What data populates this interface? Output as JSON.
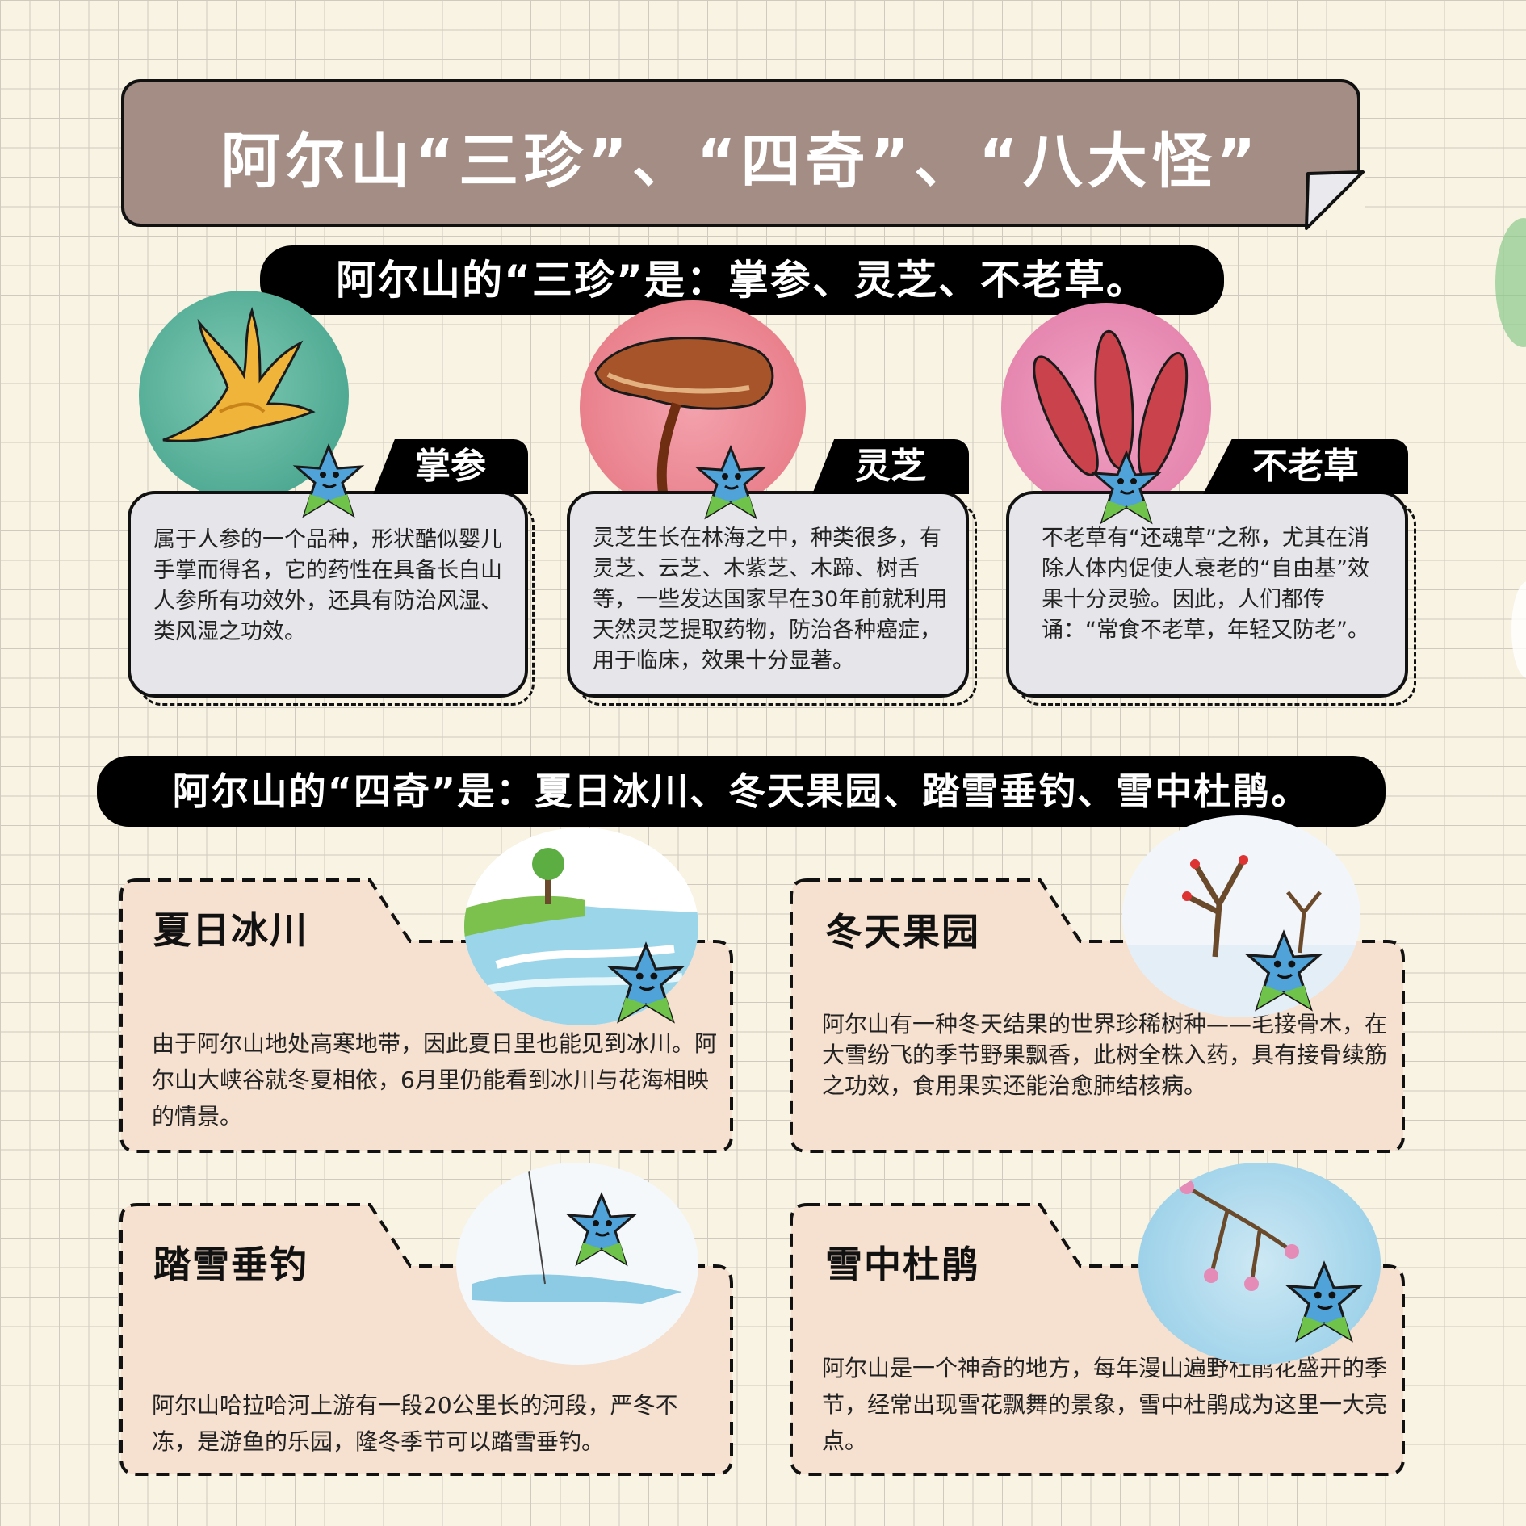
{
  "header": {
    "title": "阿尔山“三珍”、“四奇”、“八大怪”"
  },
  "sanzhen": {
    "heading": "阿尔山的“三珍”是：掌参、灵芝、不老草。",
    "items": [
      {
        "name": "掌参",
        "text": "属于人参的一个品种，形状酷似婴儿手掌而得名，它的药性在具备长白山人参所有功效外，还具有防治风湿、类风湿之功效。"
      },
      {
        "name": "灵芝",
        "text": "灵芝生长在林海之中，种类很多，有灵芝、云芝、木紫芝、木蹄、树舌等，一些发达国家早在30年前就利用天然灵芝提取药物，防治各种癌症，用于临床，效果十分显著。"
      },
      {
        "name": "不老草",
        "text": "不老草有“还魂草”之称，尤其在消除人体内促使人衰老的“自由基”效果十分灵验。因此，人们都传诵：“常食不老草，年轻又防老”。"
      }
    ]
  },
  "siqi": {
    "heading": "阿尔山的“四奇”是：夏日冰川、冬天果园、踏雪垂钓、雪中杜鹃。",
    "items": [
      {
        "name": "夏日冰川",
        "text": "由于阿尔山地处高寒地带，因此夏日里也能见到冰川。阿尔山大峡谷就冬夏相依，6月里仍能看到冰川与花海相映的情景。"
      },
      {
        "name": "冬天果园",
        "text": "阿尔山有一种冬天结果的世界珍稀树种——毛接骨木，在大雪纷飞的季节野果飘香，此树全株入药，具有接骨续筋之功效，食用果实还能治愈肺结核病。"
      },
      {
        "name": "踏雪垂钓",
        "text": "阿尔山哈拉哈河上游有一段20公里长的河段，严冬不冻，是游鱼的乐园，隆冬季节可以踏雪垂钓。"
      },
      {
        "name": "雪中杜鹃",
        "text": "阿尔山是一个神奇的地方，每年漫山遍野杜鹃花盛开的季节，经常出现雪花飘舞的景象，雪中杜鹃成为这里一大亮点。"
      }
    ]
  },
  "colors": {
    "banner": "#a48d84",
    "card": "#e6e6ea",
    "folder": "#f6e0cf",
    "grid_bg": "#f8f3e3"
  }
}
